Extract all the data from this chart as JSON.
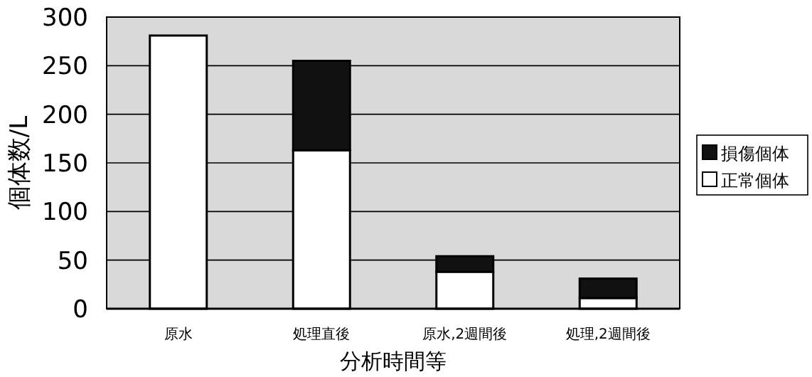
{
  "chart_data": {
    "type": "bar",
    "stacked": true,
    "xlabel": "分析時間等",
    "ylabel": "個体数/L",
    "categories": [
      "原水",
      "処理直後",
      "原水,2週間後",
      "処理,2週間後"
    ],
    "series": [
      {
        "name": "正常個体",
        "color": "#ffffff",
        "values": [
          281,
          163,
          38,
          11
        ]
      },
      {
        "name": "損傷個体",
        "color": "#111111",
        "values": [
          0,
          92,
          16,
          20
        ]
      }
    ],
    "ylim": [
      0,
      300
    ],
    "yticks": [
      0,
      50,
      100,
      150,
      200,
      250,
      300
    ],
    "grid": "y",
    "legend": "right"
  }
}
